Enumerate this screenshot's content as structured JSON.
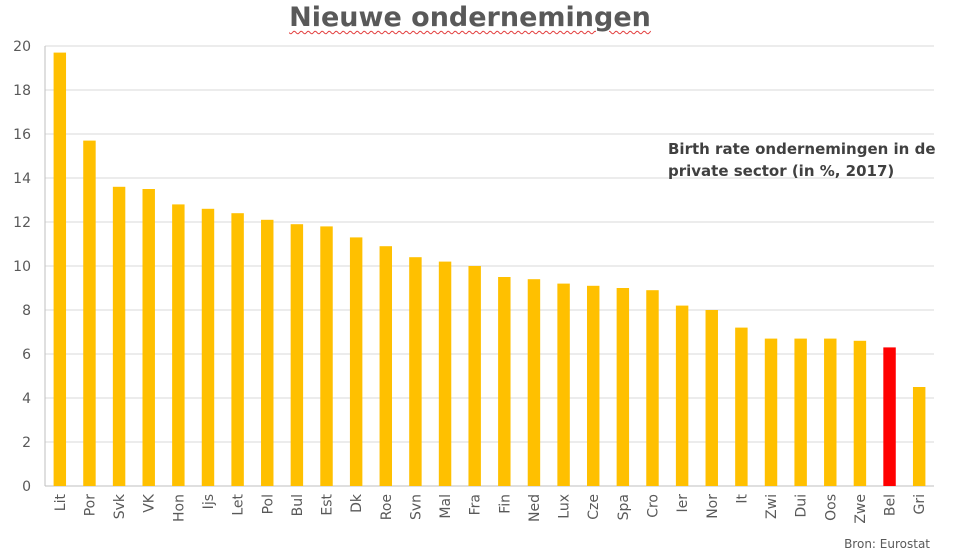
{
  "chart_data": {
    "type": "bar",
    "title": "Nieuwe ondernemingen",
    "annotation": "Birth rate ondernemingen in de private sector (in %, 2017)",
    "source": "Bron: Eurostat",
    "categories": [
      "Lit",
      "Por",
      "Svk",
      "VK",
      "Hon",
      "Ijs",
      "Let",
      "Pol",
      "Bul",
      "Est",
      "Dk",
      "Roe",
      "Svn",
      "Mal",
      "Fra",
      "Fin",
      "Ned",
      "Lux",
      "Cze",
      "Spa",
      "Cro",
      "Ier",
      "Nor",
      "It",
      "Zwi",
      "Dui",
      "Oos",
      "Zwe",
      "Bel",
      "Gri"
    ],
    "values": [
      19.7,
      15.7,
      13.6,
      13.5,
      12.8,
      12.6,
      12.4,
      12.1,
      11.9,
      11.8,
      11.3,
      10.9,
      10.4,
      10.2,
      10.0,
      9.5,
      9.4,
      9.2,
      9.1,
      9.0,
      8.9,
      8.2,
      8.0,
      7.2,
      6.7,
      6.7,
      6.7,
      6.6,
      6.3,
      4.5
    ],
    "highlight": "Bel",
    "bar_color": "#FFC000",
    "highlight_color": "#FF0000",
    "ylim": [
      0,
      20
    ],
    "yticks": [
      0,
      2,
      4,
      6,
      8,
      10,
      12,
      14,
      16,
      18,
      20
    ],
    "grid": true,
    "xlabel": "",
    "ylabel": ""
  }
}
